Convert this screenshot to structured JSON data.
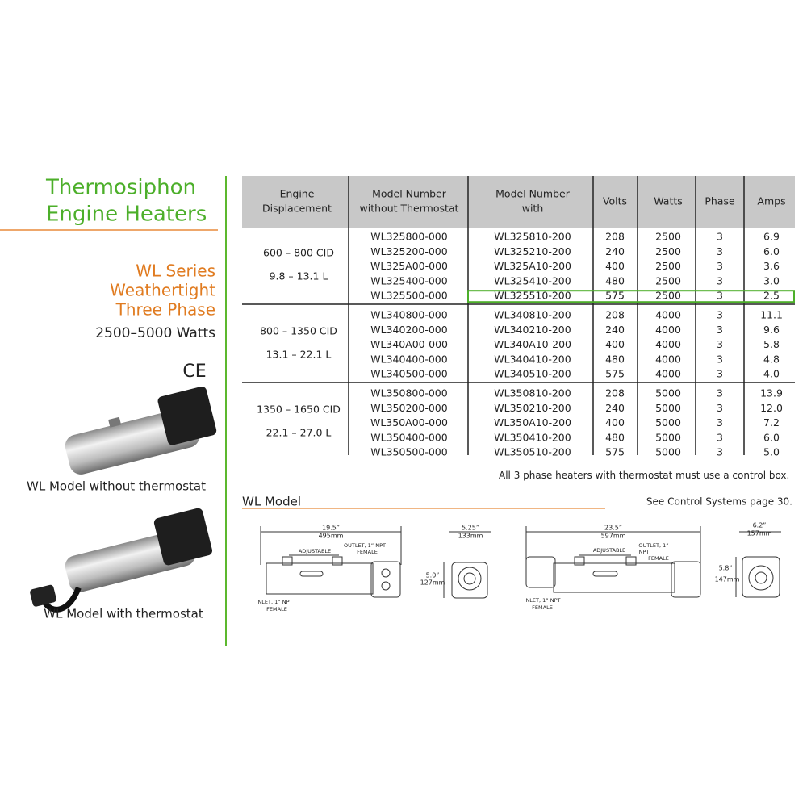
{
  "sidebar": {
    "title": [
      "Thermosiphon",
      "Engine Heaters"
    ],
    "series": [
      "WL Series",
      "Weathertight",
      "Three Phase"
    ],
    "watts": "2500–5000 Watts",
    "mark": "CE",
    "captions": [
      "WL Model without thermostat",
      "WL Model with thermostat"
    ]
  },
  "table": {
    "header": [
      [
        "Engine",
        "Displacement"
      ],
      [
        "Model Number",
        "without Thermostat"
      ],
      [
        "Model Number",
        "with"
      ],
      [
        "Volts"
      ],
      [
        "Watts"
      ],
      [
        "Phase"
      ],
      [
        "Amps"
      ]
    ],
    "groups": [
      {
        "displacement": [
          "600 – 800 CID",
          "9.8 –  13.1 L"
        ],
        "rows": [
          [
            "WL325800-000",
            "WL325810-200",
            "208",
            "2500",
            "3",
            "6.9"
          ],
          [
            "WL325200-000",
            "WL325210-200",
            "240",
            "2500",
            "3",
            "6.0"
          ],
          [
            "WL325A00-000",
            "WL325A10-200",
            "400",
            "2500",
            "3",
            "3.6"
          ],
          [
            "WL325400-000",
            "WL325410-200",
            "480",
            "2500",
            "3",
            "3.0"
          ],
          [
            "WL325500-000",
            "WL325510-200",
            "575",
            "2500",
            "3",
            "2.5"
          ]
        ]
      },
      {
        "displacement": [
          "800 – 1350 CID",
          "13.1 –  22.1 L"
        ],
        "rows": [
          [
            "WL340800-000",
            "WL340810-200",
            "208",
            "4000",
            "3",
            "11.1"
          ],
          [
            "WL340200-000",
            "WL340210-200",
            "240",
            "4000",
            "3",
            "9.6"
          ],
          [
            "WL340A00-000",
            "WL340A10-200",
            "400",
            "4000",
            "3",
            "5.8"
          ],
          [
            "WL340400-000",
            "WL340410-200",
            "480",
            "4000",
            "3",
            "4.8"
          ],
          [
            "WL340500-000",
            "WL340510-200",
            "575",
            "4000",
            "3",
            "4.0"
          ]
        ]
      },
      {
        "displacement": [
          "1350 – 1650 CID",
          "22.1 –  27.0 L"
        ],
        "rows": [
          [
            "WL350800-000",
            "WL350810-200",
            "208",
            "5000",
            "3",
            "13.9"
          ],
          [
            "WL350200-000",
            "WL350210-200",
            "240",
            "5000",
            "3",
            "12.0"
          ],
          [
            "WL350A00-000",
            "WL350A10-200",
            "400",
            "5000",
            "3",
            "7.2"
          ],
          [
            "WL350400-000",
            "WL350410-200",
            "480",
            "5000",
            "3",
            "6.0"
          ],
          [
            "WL350500-000",
            "WL350510-200",
            "575",
            "5000",
            "3",
            "5.0"
          ]
        ]
      }
    ]
  },
  "note": "All 3 phase heaters with thermostat must use a control box.",
  "section": "WL Model",
  "reference": "See Control Systems page 30.",
  "diagrams": [
    {
      "length": [
        "19.5”",
        "495mm"
      ],
      "adjustable": "ADJUSTABLE",
      "outlet": [
        "OUTLET, 1” NPT",
        "FEMALE"
      ],
      "inlet": [
        "INLET, 1” NPT",
        "FEMALE"
      ],
      "width": [
        "5.25”",
        "133mm"
      ],
      "height": [
        "5.0”",
        "127mm"
      ]
    },
    {
      "length": [
        "23.5”",
        "597mm"
      ],
      "adjustable": "ADJUSTABLE",
      "outlet": [
        "OUTLET, 1”",
        "NPT",
        "FEMALE"
      ],
      "inlet": [
        "INLET, 1” NPT",
        "FEMALE"
      ],
      "width": [
        "6.2”",
        "157mm"
      ],
      "height": [
        "5.8”",
        "147mm"
      ]
    }
  ]
}
